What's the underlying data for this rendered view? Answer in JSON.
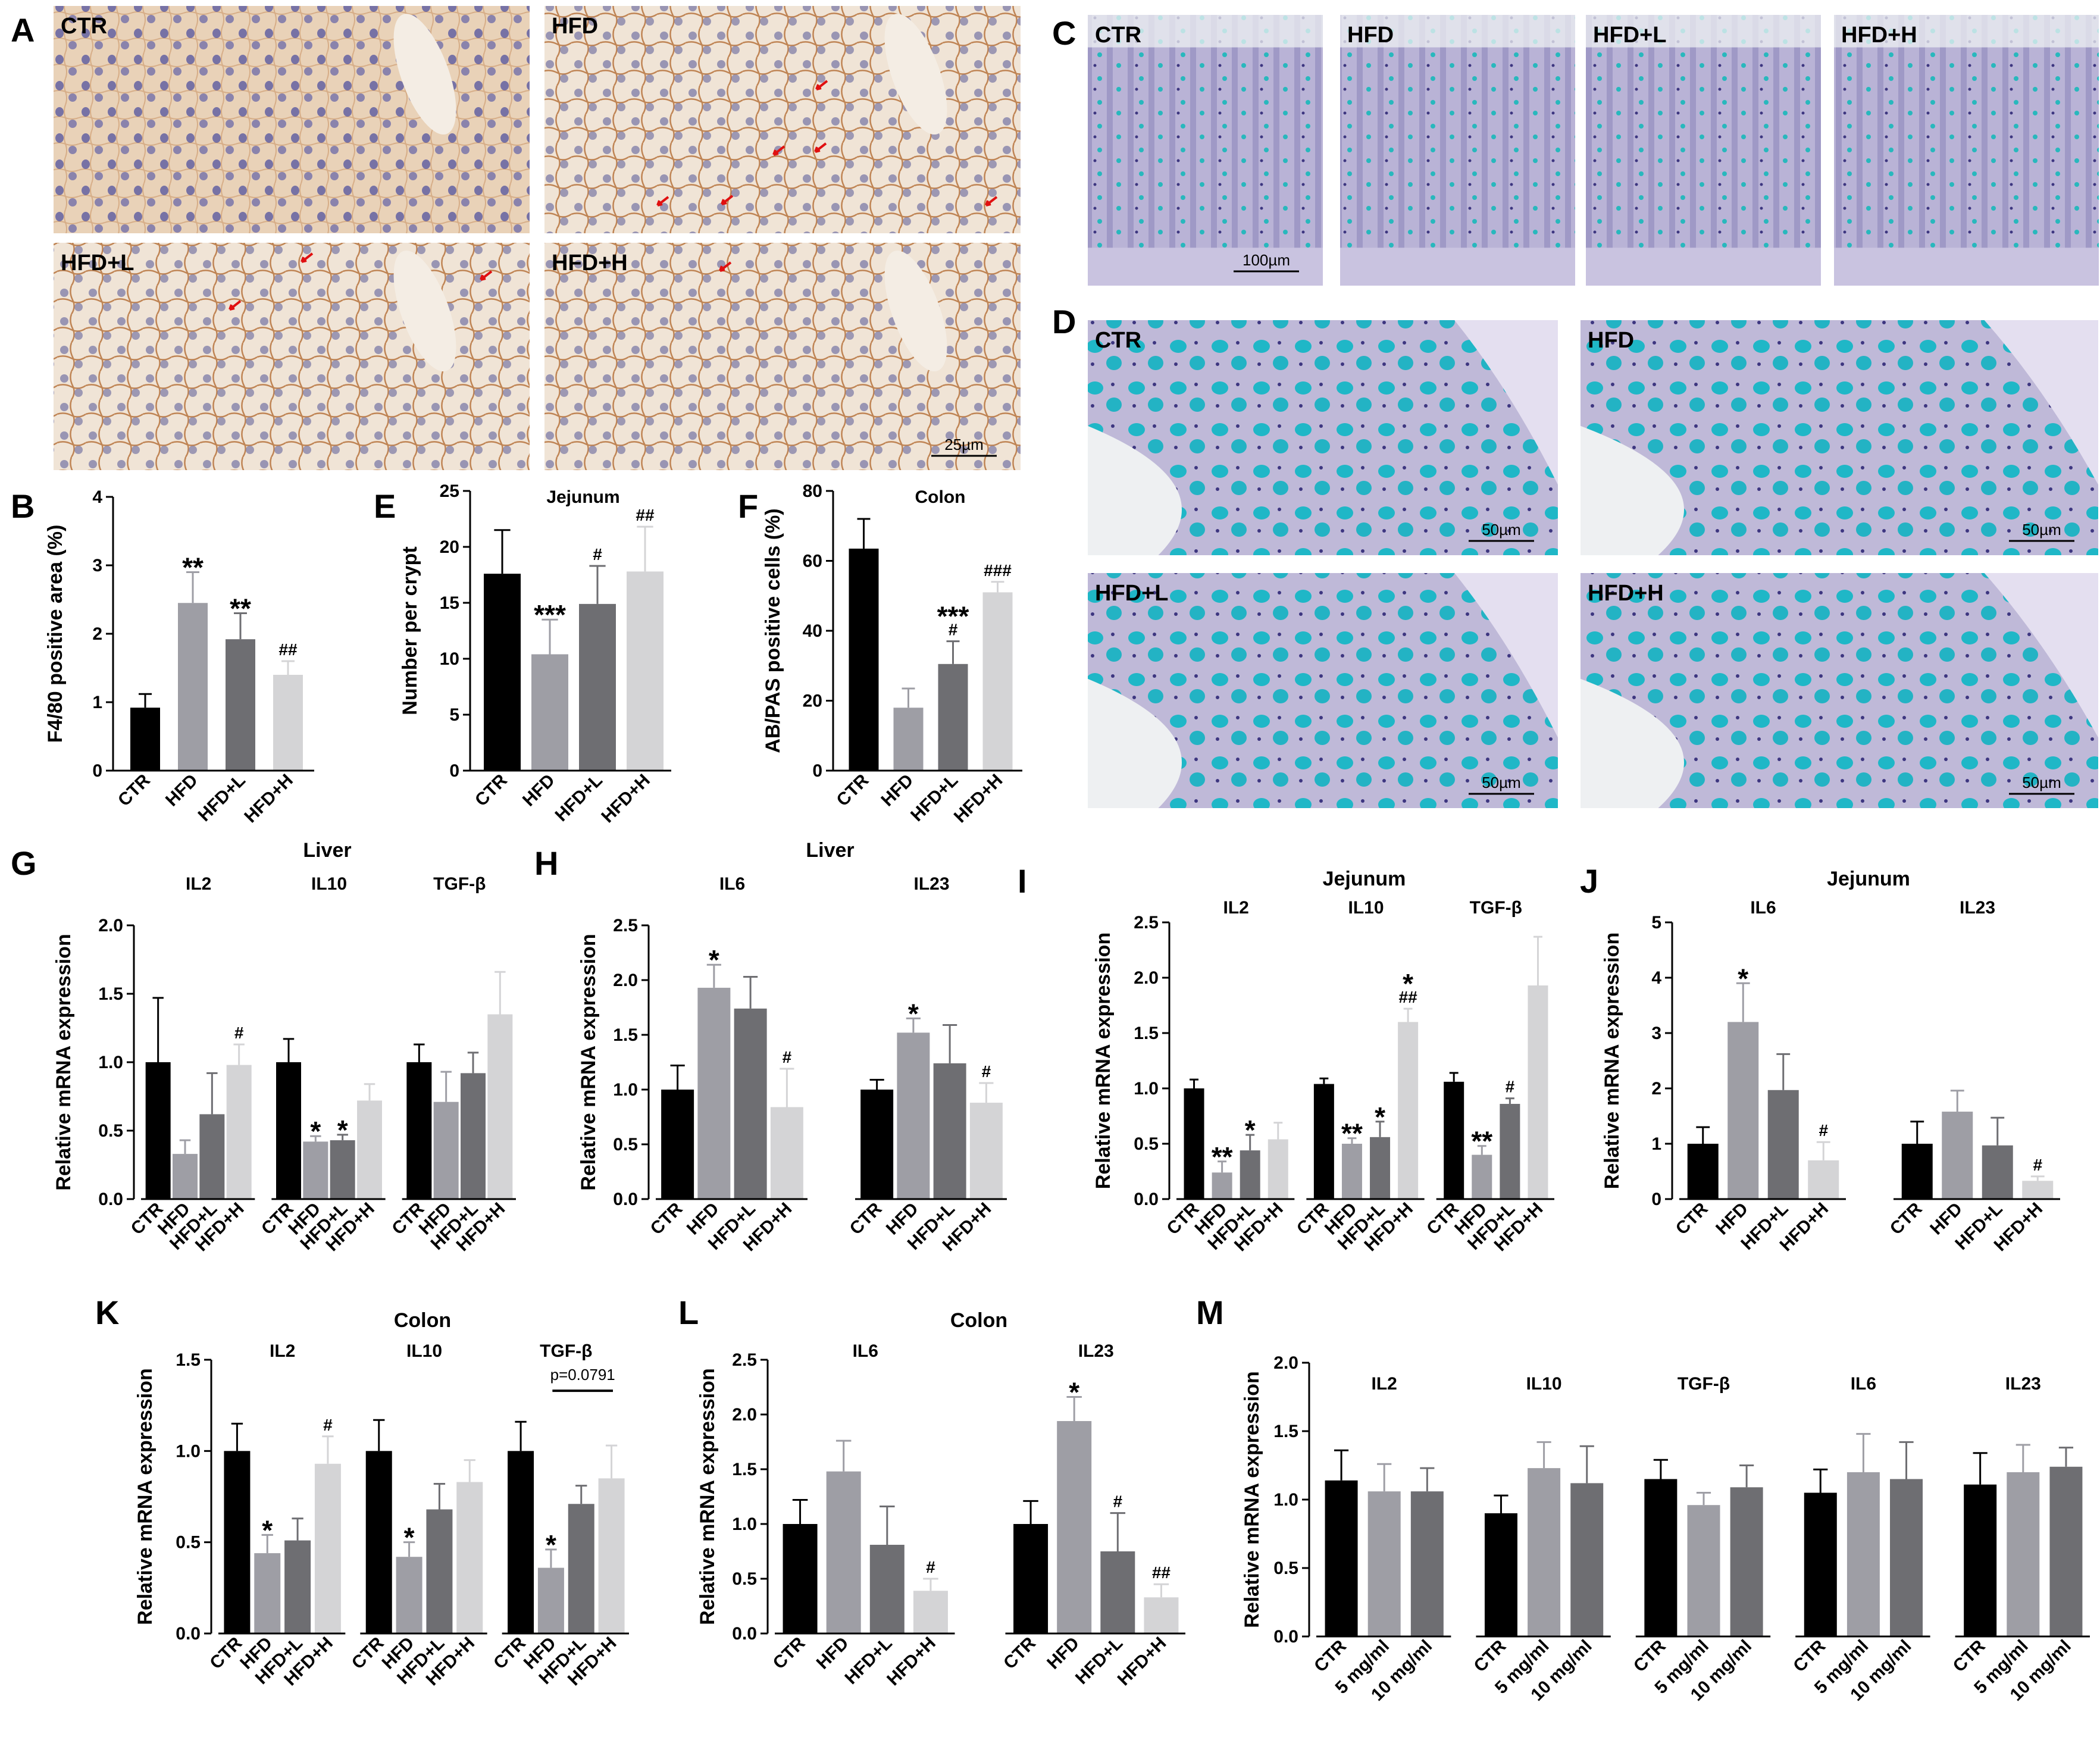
{
  "panel_letters": {
    "A": "A",
    "B": "B",
    "C": "C",
    "D": "D",
    "E": "E",
    "F": "F",
    "G": "G",
    "H": "H",
    "I": "I",
    "J": "J",
    "K": "K",
    "L": "L",
    "M": "M"
  },
  "colors": {
    "CTR": "#000000",
    "HFD": "#9e9ea5",
    "HFD+L": "#6e6e72",
    "HFD+H": "#d4d4d6",
    "plain": "#8a8a8e"
  },
  "histology": {
    "A": {
      "labels": [
        "CTR",
        "HFD",
        "HFD+L",
        "HFD+H"
      ],
      "scale_bar": "25µm"
    },
    "C": {
      "labels": [
        "CTR",
        "HFD",
        "HFD+L",
        "HFD+H"
      ],
      "scale_bar": "100µm"
    },
    "D": {
      "labels": [
        "CTR",
        "HFD",
        "HFD+L",
        "HFD+H"
      ],
      "scale_bar": "50µm"
    }
  },
  "chart_data": [
    {
      "id": "B",
      "type": "bar",
      "title": "",
      "ylabel": "F4/80 positive area (%)",
      "ylim": [
        0,
        4
      ],
      "yticks": [
        "0",
        "1",
        "2",
        "3",
        "4"
      ],
      "categories": [
        "CTR",
        "HFD",
        "HFD+L",
        "HFD+H"
      ],
      "values": [
        0.92,
        2.45,
        1.92,
        1.4
      ],
      "errors": [
        0.2,
        0.45,
        0.38,
        0.2
      ],
      "sig": [
        "",
        "**",
        "**",
        "##"
      ]
    },
    {
      "id": "E",
      "type": "bar",
      "title": "Jejunum",
      "ylabel": "Number per crypt",
      "ylim": [
        0,
        25
      ],
      "yticks": [
        "0",
        "5",
        "10",
        "15",
        "20",
        "25"
      ],
      "categories": [
        "CTR",
        "HFD",
        "HFD+L",
        "HFD+H"
      ],
      "values": [
        17.6,
        10.4,
        14.9,
        17.8
      ],
      "errors": [
        3.9,
        3.1,
        3.4,
        4.0
      ],
      "sig": [
        "",
        "***",
        "#",
        "##"
      ]
    },
    {
      "id": "F",
      "type": "bar",
      "title": "Colon",
      "ylabel": "AB/PAS positive cells (%)",
      "ylim": [
        0,
        80
      ],
      "yticks": [
        "0",
        "20",
        "40",
        "60",
        "80"
      ],
      "categories": [
        "CTR",
        "HFD",
        "HFD+L",
        "HFD+H"
      ],
      "values": [
        63.5,
        18.0,
        30.5,
        51.0
      ],
      "errors": [
        8.5,
        5.5,
        6.5,
        3.0
      ],
      "sig": [
        "",
        "",
        "***\n#",
        "###"
      ]
    },
    {
      "id": "G",
      "type": "bar",
      "title": "Liver",
      "ylabel": "Relative mRNA expression",
      "ylim": [
        0,
        2
      ],
      "yticks": [
        "0.0",
        "0.5",
        "1.0",
        "1.5",
        "2.0"
      ],
      "groups": [
        {
          "name": "IL2",
          "categories": [
            "CTR",
            "HFD",
            "HFD+L",
            "HFD+H"
          ],
          "values": [
            1.0,
            0.33,
            0.62,
            0.98
          ],
          "errors": [
            0.47,
            0.1,
            0.3,
            0.15
          ],
          "sig": [
            "",
            "",
            "",
            "#"
          ]
        },
        {
          "name": "IL10",
          "categories": [
            "CTR",
            "HFD",
            "HFD+L",
            "HFD+H"
          ],
          "values": [
            1.0,
            0.42,
            0.43,
            0.72
          ],
          "errors": [
            0.17,
            0.04,
            0.04,
            0.12
          ],
          "sig": [
            "",
            "*",
            "*",
            ""
          ]
        },
        {
          "name": "TGF-β",
          "categories": [
            "CTR",
            "HFD",
            "HFD+L",
            "HFD+H"
          ],
          "values": [
            1.0,
            0.71,
            0.92,
            1.35
          ],
          "errors": [
            0.13,
            0.22,
            0.15,
            0.31
          ],
          "sig": [
            "",
            "",
            "",
            ""
          ]
        }
      ]
    },
    {
      "id": "H",
      "type": "bar",
      "title": "Liver",
      "ylabel": "Relative mRNA expression",
      "ylim": [
        0,
        2.5
      ],
      "yticks": [
        "0.0",
        "0.5",
        "1.0",
        "1.5",
        "2.0",
        "2.5"
      ],
      "groups": [
        {
          "name": "IL6",
          "categories": [
            "CTR",
            "HFD",
            "HFD+L",
            "HFD+H"
          ],
          "values": [
            1.0,
            1.93,
            1.74,
            0.84
          ],
          "errors": [
            0.22,
            0.21,
            0.29,
            0.35
          ],
          "sig": [
            "",
            "*",
            "",
            "#"
          ]
        },
        {
          "name": "IL23",
          "categories": [
            "CTR",
            "HFD",
            "HFD+L",
            "HFD+H"
          ],
          "values": [
            1.0,
            1.52,
            1.24,
            0.88
          ],
          "errors": [
            0.09,
            0.13,
            0.35,
            0.18
          ],
          "sig": [
            "",
            "*",
            "",
            "#"
          ]
        }
      ]
    },
    {
      "id": "I",
      "type": "bar",
      "title": "Jejunum",
      "ylabel": "Relative mRNA expression",
      "ylim": [
        0,
        2.5
      ],
      "yticks": [
        "0.0",
        "0.5",
        "1.0",
        "1.5",
        "2.0",
        "2.5"
      ],
      "groups": [
        {
          "name": "IL2",
          "categories": [
            "CTR",
            "HFD",
            "HFD+L",
            "HFD+H"
          ],
          "values": [
            1.0,
            0.24,
            0.44,
            0.54
          ],
          "errors": [
            0.08,
            0.1,
            0.14,
            0.15
          ],
          "sig": [
            "",
            "**",
            "*",
            ""
          ]
        },
        {
          "name": "IL10",
          "categories": [
            "CTR",
            "HFD",
            "HFD+L",
            "HFD+H"
          ],
          "values": [
            1.04,
            0.5,
            0.56,
            1.6
          ],
          "errors": [
            0.05,
            0.05,
            0.14,
            0.12
          ],
          "sig": [
            "",
            "**",
            "*",
            "*\n##"
          ]
        },
        {
          "name": "TGF-β",
          "categories": [
            "CTR",
            "HFD",
            "HFD+L",
            "HFD+H"
          ],
          "values": [
            1.06,
            0.4,
            0.86,
            1.93
          ],
          "errors": [
            0.08,
            0.08,
            0.05,
            0.44
          ],
          "sig": [
            "",
            "**",
            "#",
            ""
          ]
        }
      ]
    },
    {
      "id": "J",
      "type": "bar",
      "title": "Jejunum",
      "ylabel": "Relative mRNA expression",
      "ylim": [
        0,
        5
      ],
      "yticks": [
        "0",
        "1",
        "2",
        "3",
        "4",
        "5"
      ],
      "groups": [
        {
          "name": "IL6",
          "categories": [
            "CTR",
            "HFD",
            "HFD+L",
            "HFD+H"
          ],
          "values": [
            1.0,
            3.2,
            1.97,
            0.7
          ],
          "errors": [
            0.3,
            0.7,
            0.65,
            0.33
          ],
          "sig": [
            "",
            "*",
            "",
            "#"
          ]
        },
        {
          "name": "IL23",
          "categories": [
            "CTR",
            "HFD",
            "HFD+L",
            "HFD+H"
          ],
          "values": [
            1.0,
            1.58,
            0.97,
            0.33
          ],
          "errors": [
            0.4,
            0.38,
            0.5,
            0.08
          ],
          "sig": [
            "",
            "",
            "",
            "#"
          ]
        }
      ]
    },
    {
      "id": "K",
      "type": "bar",
      "title": "Colon",
      "ylabel": "Relative mRNA expression",
      "ylim": [
        0,
        1.5
      ],
      "yticks": [
        "0.0",
        "0.5",
        "1.0",
        "1.5"
      ],
      "annotation": "p=0.0791",
      "groups": [
        {
          "name": "IL2",
          "categories": [
            "CTR",
            "HFD",
            "HFD+L",
            "HFD+H"
          ],
          "values": [
            1.0,
            0.44,
            0.51,
            0.93
          ],
          "errors": [
            0.15,
            0.1,
            0.12,
            0.15
          ],
          "sig": [
            "",
            "*",
            "",
            "#"
          ]
        },
        {
          "name": "IL10",
          "categories": [
            "CTR",
            "HFD",
            "HFD+L",
            "HFD+H"
          ],
          "values": [
            1.0,
            0.42,
            0.68,
            0.83
          ],
          "errors": [
            0.17,
            0.08,
            0.14,
            0.12
          ],
          "sig": [
            "",
            "*",
            "",
            ""
          ]
        },
        {
          "name": "TGF-β",
          "categories": [
            "CTR",
            "HFD",
            "HFD+L",
            "HFD+H"
          ],
          "values": [
            1.0,
            0.36,
            0.71,
            0.85
          ],
          "errors": [
            0.16,
            0.1,
            0.1,
            0.18
          ],
          "sig": [
            "",
            "*",
            "",
            ""
          ]
        }
      ]
    },
    {
      "id": "L",
      "type": "bar",
      "title": "Colon",
      "ylabel": "Relative mRNA expression",
      "ylim": [
        0,
        2.5
      ],
      "yticks": [
        "0.0",
        "0.5",
        "1.0",
        "1.5",
        "2.0",
        "2.5"
      ],
      "groups": [
        {
          "name": "IL6",
          "categories": [
            "CTR",
            "HFD",
            "HFD+L",
            "HFD+H"
          ],
          "values": [
            1.0,
            1.48,
            0.81,
            0.39
          ],
          "errors": [
            0.22,
            0.28,
            0.35,
            0.11
          ],
          "sig": [
            "",
            "",
            "",
            "#"
          ]
        },
        {
          "name": "IL23",
          "categories": [
            "CTR",
            "HFD",
            "HFD+L",
            "HFD+H"
          ],
          "values": [
            1.0,
            1.94,
            0.75,
            0.33
          ],
          "errors": [
            0.21,
            0.22,
            0.35,
            0.12
          ],
          "sig": [
            "",
            "*",
            "#",
            "##"
          ]
        }
      ]
    },
    {
      "id": "M",
      "type": "bar",
      "title": "",
      "ylabel": "Relative mRNA expression",
      "ylim": [
        0,
        2
      ],
      "yticks": [
        "0.0",
        "0.5",
        "1.0",
        "1.5",
        "2.0"
      ],
      "groups": [
        {
          "name": "IL2",
          "categories": [
            "CTR",
            "5 mg/ml",
            "10 mg/ml"
          ],
          "values": [
            1.14,
            1.06,
            1.06
          ],
          "errors": [
            0.22,
            0.2,
            0.17
          ],
          "sig": [
            "",
            "",
            ""
          ]
        },
        {
          "name": "IL10",
          "categories": [
            "CTR",
            "5 mg/ml",
            "10 mg/ml"
          ],
          "values": [
            0.9,
            1.23,
            1.12
          ],
          "errors": [
            0.13,
            0.19,
            0.27
          ],
          "sig": [
            "",
            "",
            ""
          ]
        },
        {
          "name": "TGF-β",
          "categories": [
            "CTR",
            "5 mg/ml",
            "10 mg/ml"
          ],
          "values": [
            1.15,
            0.96,
            1.09
          ],
          "errors": [
            0.14,
            0.09,
            0.16
          ],
          "sig": [
            "",
            "",
            ""
          ]
        },
        {
          "name": "IL6",
          "categories": [
            "CTR",
            "5 mg/ml",
            "10 mg/ml"
          ],
          "values": [
            1.05,
            1.2,
            1.15
          ],
          "errors": [
            0.17,
            0.28,
            0.27
          ],
          "sig": [
            "",
            "",
            ""
          ]
        },
        {
          "name": "IL23",
          "categories": [
            "CTR",
            "5 mg/ml",
            "10 mg/ml"
          ],
          "values": [
            1.11,
            1.2,
            1.24
          ],
          "errors": [
            0.23,
            0.2,
            0.14
          ],
          "sig": [
            "",
            "",
            ""
          ]
        }
      ]
    }
  ]
}
